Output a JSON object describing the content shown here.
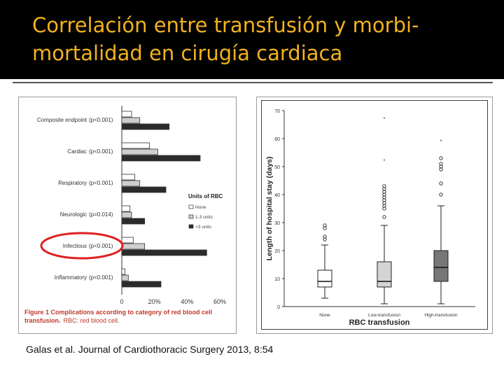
{
  "slide": {
    "title_lines": [
      "Correlación entre transfusión y morbi-",
      "mortalidad en cirugía cardiaca"
    ],
    "citation": "Galas et al. Journal of Cardiothoracic Surgery 2013, 8:54",
    "title_color": "#f2b21f",
    "highlight_color": "#e02020"
  },
  "chart_data": [
    {
      "type": "bar",
      "orientation": "horizontal",
      "categories": [
        "Composite endpoint",
        "Cardiac",
        "Respiratory",
        "Neurologic",
        "Infectious",
        "Inflammatory"
      ],
      "p_values": [
        "(p<0.001)",
        "(p<0.001)",
        "(p<0.001)",
        "(p=0.014)",
        "(p<0.001)",
        "(p<0.001)"
      ],
      "series": [
        {
          "name": "None",
          "color": "#ffffff",
          "values": [
            6,
            17,
            8,
            5,
            7,
            2
          ]
        },
        {
          "name": "1-3 units",
          "color": "#cfcfcf",
          "values": [
            11,
            22,
            11,
            6,
            14,
            4
          ]
        },
        {
          "name": ">3 units",
          "color": "#2b2b2b",
          "values": [
            29,
            48,
            27,
            14,
            52,
            24
          ]
        }
      ],
      "xlim": [
        0,
        60
      ],
      "x_ticks": [
        "0",
        "20%",
        "40%",
        "60%"
      ],
      "legend_title": "Units of RBC",
      "legend_position": "right",
      "caption_bold": "Figure 1 Complications according to category of red blood cell transfusion.",
      "caption_rest": "RBC: red blood cell.",
      "highlighted_category": "Infectious"
    },
    {
      "type": "boxplot",
      "title": "",
      "xlabel": "RBC transfusion",
      "ylabel": "Length of hospital stay (days)",
      "ylim": [
        0,
        70
      ],
      "y_ticks": [
        0,
        10,
        20,
        30,
        40,
        50,
        60,
        70
      ],
      "categories": [
        "None",
        "Low-transfusion",
        "High-transfusion"
      ],
      "boxes": [
        {
          "name": "None",
          "color": "#ffffff",
          "whisker_low": 3,
          "q1": 7,
          "median": 9,
          "q3": 13,
          "whisker_high": 22,
          "outliers": [
            24,
            25,
            28,
            29
          ],
          "extremes": []
        },
        {
          "name": "Low-transfusion",
          "color": "#d4d4d4",
          "whisker_low": 1,
          "q1": 7,
          "median": 9,
          "q3": 16,
          "whisker_high": 29,
          "outliers": [
            32,
            35,
            36,
            37,
            38,
            39,
            40,
            41,
            42,
            43
          ],
          "extremes": [
            52,
            67
          ]
        },
        {
          "name": "High-transfusion",
          "color": "#777777",
          "whisker_low": 1,
          "q1": 9,
          "median": 14,
          "q3": 20,
          "whisker_high": 36,
          "outliers": [
            40,
            44,
            49,
            50,
            51,
            53
          ],
          "extremes": [
            59
          ]
        }
      ]
    }
  ]
}
